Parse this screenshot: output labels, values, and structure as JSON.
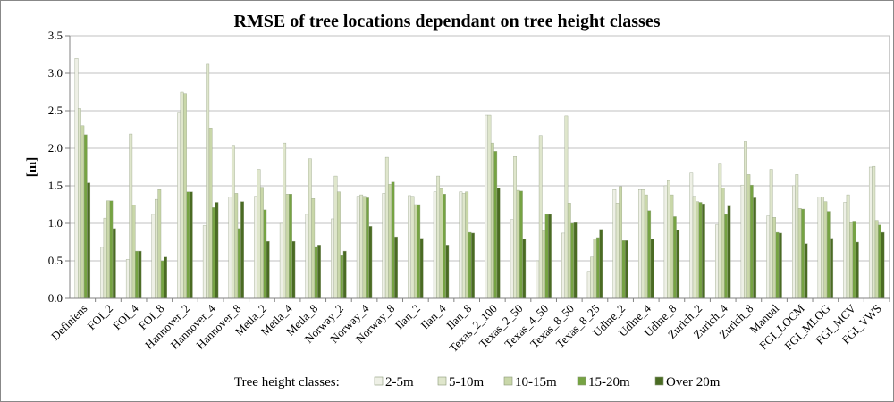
{
  "chart_data": {
    "type": "bar",
    "title": "RMSE of tree locations dependant on tree height classes",
    "xlabel": "",
    "ylabel": "[m]",
    "ylim": [
      0,
      3.5
    ],
    "yticks": [
      "0.0",
      "0.5",
      "1.0",
      "1.5",
      "2.0",
      "2.5",
      "3.0",
      "3.5"
    ],
    "grid": true,
    "legend_title": "Tree height classes:",
    "legend_position": "bottom",
    "categories": [
      "Definiens",
      "FOI_2",
      "FOI_4",
      "FOI_8",
      "Hannover_2",
      "Hannover_4",
      "Hannover_8",
      "Metla_2",
      "Metla_4",
      "Metla_8",
      "Norway_2",
      "Norway_4",
      "Norway_8",
      "Ilan_2",
      "Ilan_4",
      "Ilan_8",
      "Texas_2_100",
      "Texas_2_50",
      "Texas_4_50",
      "Texas_8_50",
      "Texas_8_25",
      "Udine_2",
      "Udine_4",
      "Udine_8",
      "Zurich_2",
      "Zurich_4",
      "Zurich_8",
      "Manual",
      "FGI_LOCM",
      "FGI_MLOG",
      "FGI_MCV",
      "FGI_VWS"
    ],
    "series": [
      {
        "name": "2-5m",
        "color": "#eef0e6",
        "values": [
          3.2,
          0.68,
          0.52,
          1.12,
          2.48,
          0.97,
          1.35,
          1.36,
          1.0,
          1.12,
          1.06,
          1.36,
          1.4,
          1.37,
          1.42,
          1.42,
          2.44,
          1.05,
          0.5,
          0.87,
          0.36,
          1.45,
          1.45,
          1.5,
          1.67,
          0.98,
          1.51,
          1.1,
          1.5,
          1.35,
          1.28,
          1.75
        ]
      },
      {
        "name": "5-10m",
        "color": "#dfe6cc",
        "values": [
          2.53,
          1.07,
          2.19,
          1.32,
          2.75,
          3.12,
          2.04,
          1.72,
          2.07,
          1.86,
          1.63,
          1.38,
          1.88,
          1.36,
          1.63,
          1.4,
          2.44,
          1.89,
          2.17,
          2.43,
          0.55,
          1.27,
          1.45,
          1.57,
          1.36,
          1.79,
          2.09,
          1.72,
          1.65,
          1.35,
          1.38,
          1.76
        ]
      },
      {
        "name": "10-15m",
        "color": "#c9d7a9",
        "values": [
          2.3,
          1.3,
          1.24,
          1.45,
          2.73,
          2.27,
          1.4,
          1.48,
          1.39,
          1.33,
          1.42,
          1.36,
          1.52,
          1.25,
          1.46,
          1.42,
          2.07,
          1.44,
          0.9,
          1.27,
          0.79,
          1.49,
          1.38,
          1.38,
          1.29,
          1.47,
          1.65,
          1.08,
          1.2,
          1.29,
          1.01,
          1.04
        ]
      },
      {
        "name": "15-20m",
        "color": "#76a343",
        "values": [
          2.18,
          1.3,
          0.63,
          0.5,
          1.42,
          1.21,
          0.93,
          1.18,
          1.39,
          0.69,
          0.57,
          1.34,
          1.55,
          1.25,
          1.39,
          0.88,
          1.96,
          1.43,
          1.12,
          1.0,
          0.81,
          0.77,
          1.17,
          1.09,
          1.28,
          1.12,
          1.51,
          0.88,
          1.19,
          1.16,
          1.03,
          0.98
        ]
      },
      {
        "name": "Over 20m",
        "color": "#4a6b23",
        "values": [
          1.54,
          0.93,
          0.63,
          0.55,
          1.42,
          1.28,
          1.29,
          0.76,
          0.76,
          0.71,
          0.63,
          0.96,
          0.82,
          0.8,
          0.71,
          0.87,
          1.47,
          0.79,
          1.12,
          1.01,
          0.92,
          0.77,
          0.79,
          0.91,
          1.26,
          1.23,
          1.34,
          0.87,
          0.73,
          0.8,
          0.75,
          0.88
        ]
      }
    ]
  }
}
